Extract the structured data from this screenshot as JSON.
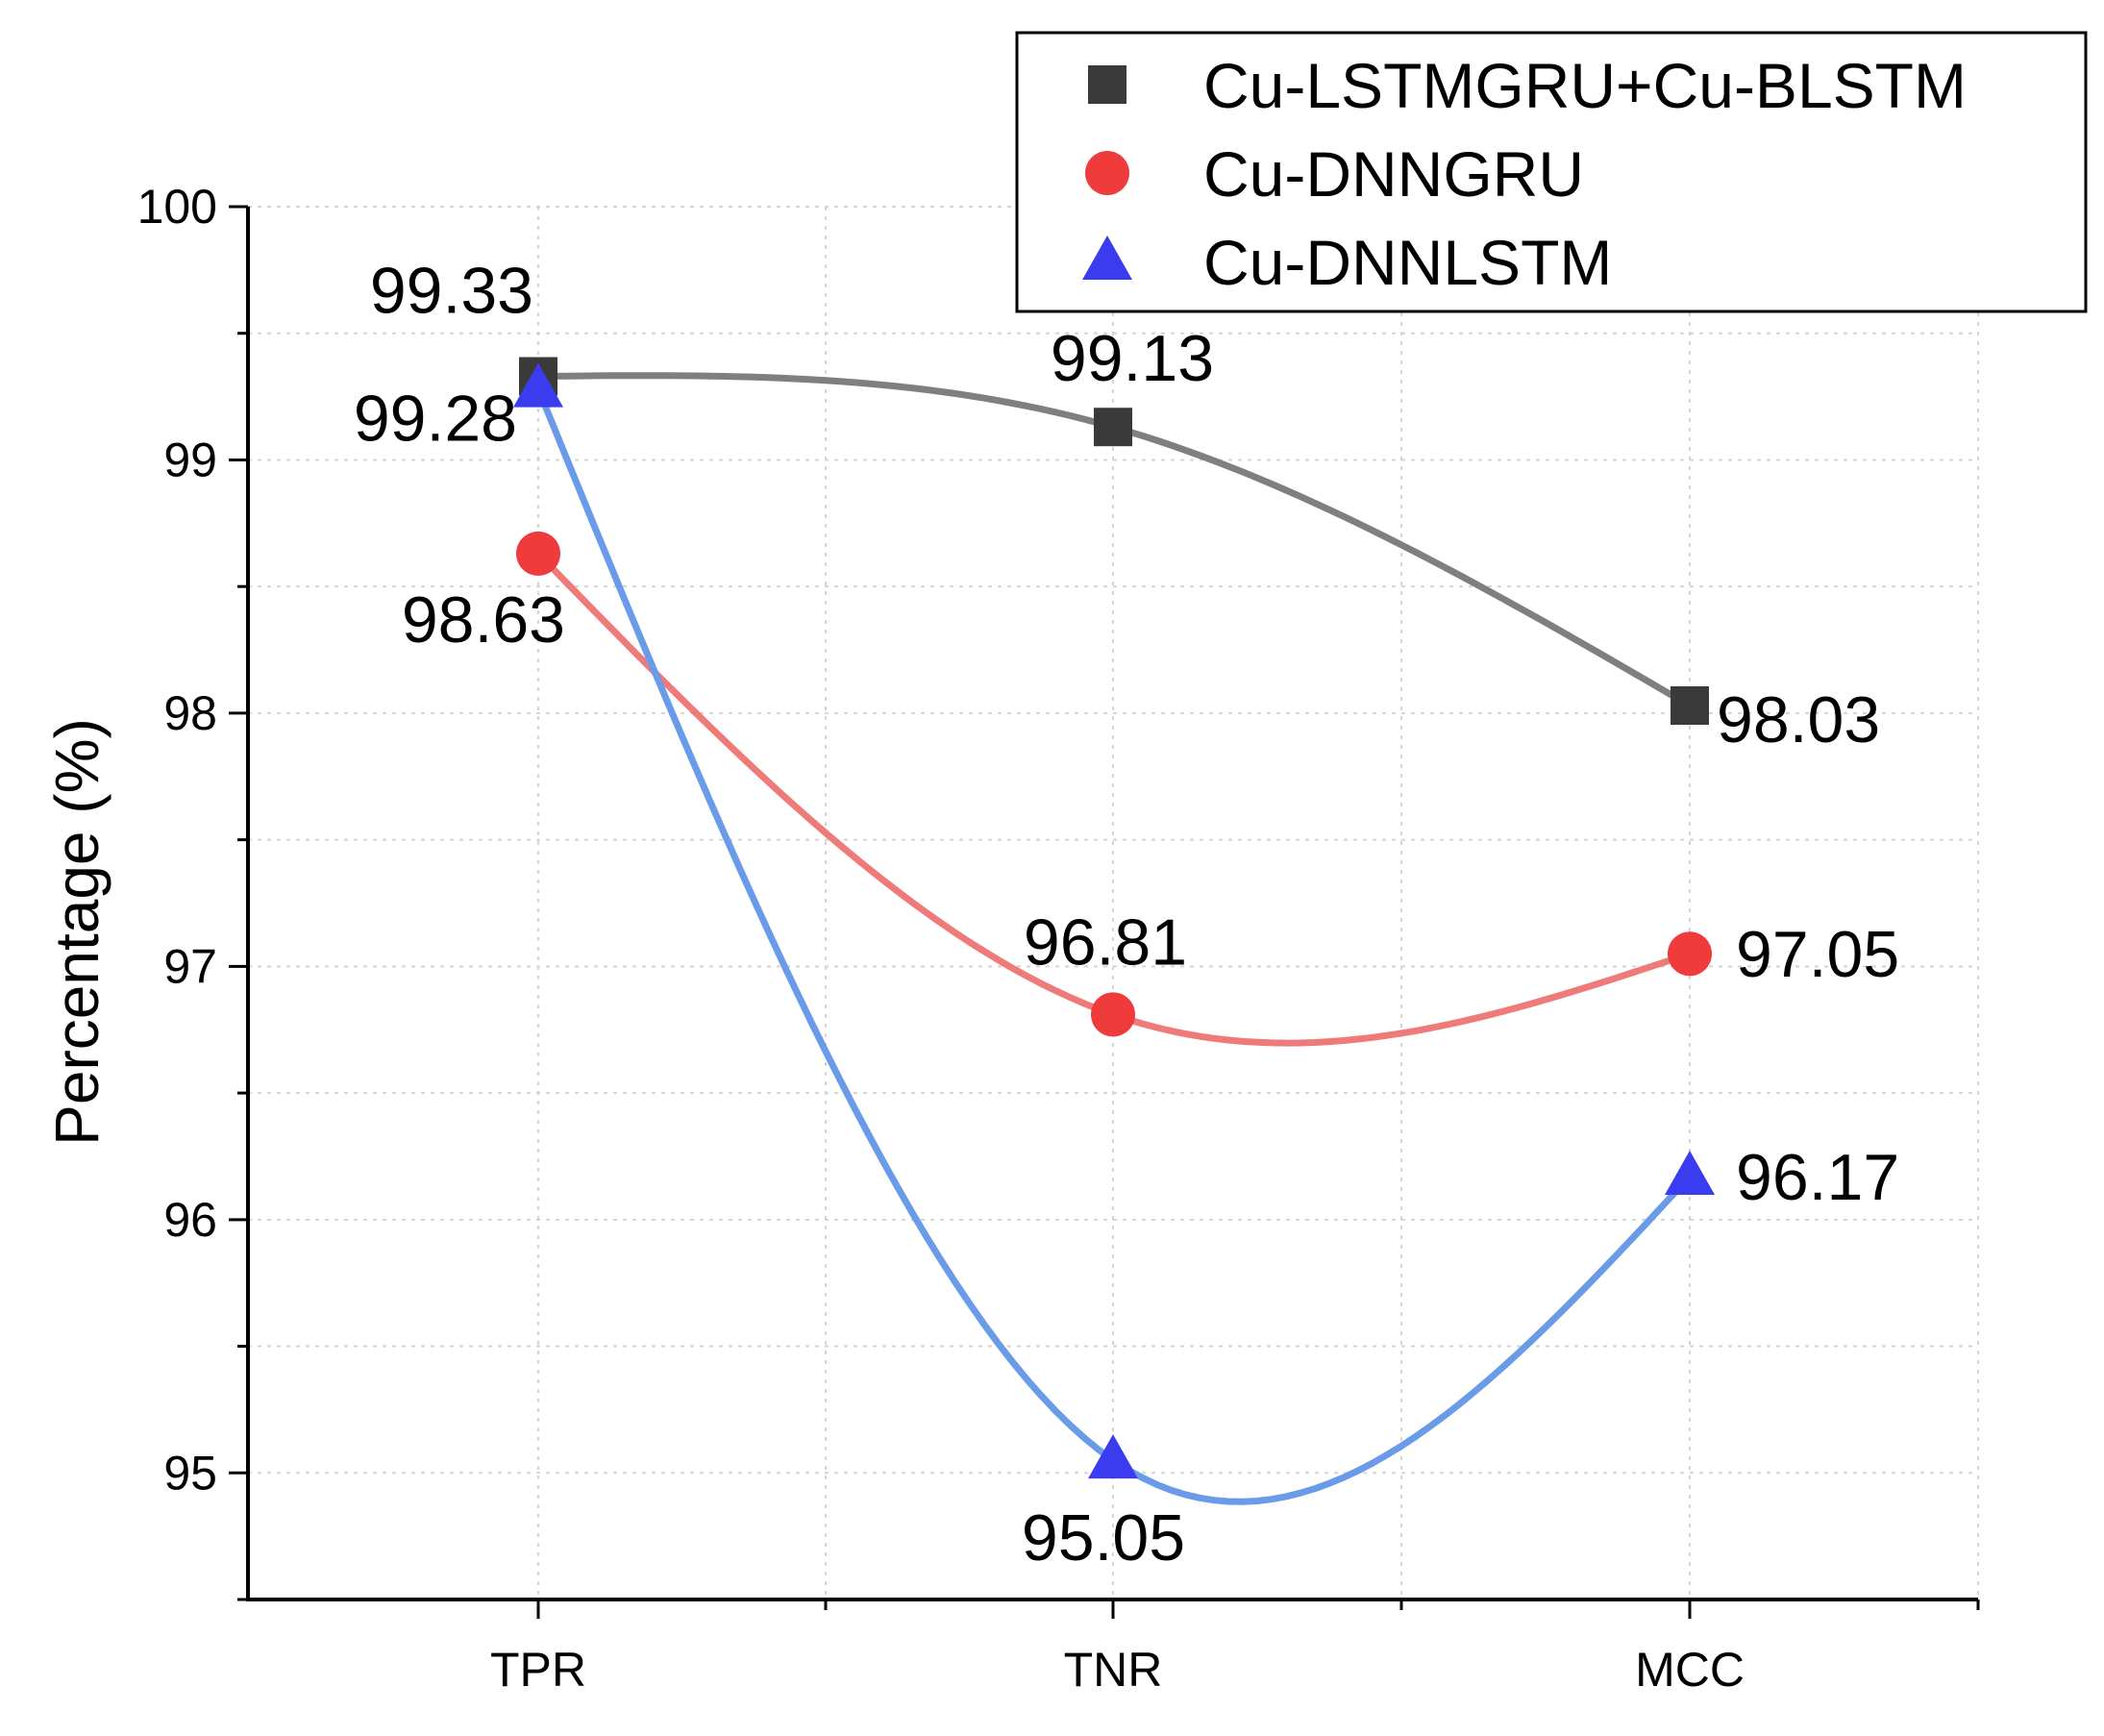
{
  "chart_data": {
    "type": "line",
    "title": "",
    "xlabel": "",
    "ylabel": "Percentage (%)",
    "categories": [
      "TPR",
      "TNR",
      "MCC"
    ],
    "ylim": [
      94.5,
      100
    ],
    "yticks": [
      95,
      96,
      97,
      98,
      99,
      100
    ],
    "grid": true,
    "legend_position": "top-right",
    "series": [
      {
        "name": "Cu-LSTMGRU+Cu-BLSTM",
        "marker": "square",
        "marker_color": "#3a3a3a",
        "line_color": "#7f7f7f",
        "values": [
          99.33,
          99.13,
          98.03
        ],
        "labels": [
          "99.33",
          "99.13",
          "98.03"
        ]
      },
      {
        "name": "Cu-DNNGRU",
        "marker": "circle",
        "marker_color": "#ef3b3b",
        "line_color": "#ef7a7a",
        "values": [
          98.63,
          96.81,
          97.05
        ],
        "labels": [
          "98.63",
          "96.81",
          "97.05"
        ]
      },
      {
        "name": "Cu-DNNLSTM",
        "marker": "triangle",
        "marker_color": "#3b3bef",
        "line_color": "#6a9be8",
        "values": [
          99.28,
          95.05,
          96.17
        ],
        "labels": [
          "99.28",
          "95.05",
          "96.17"
        ]
      }
    ]
  }
}
